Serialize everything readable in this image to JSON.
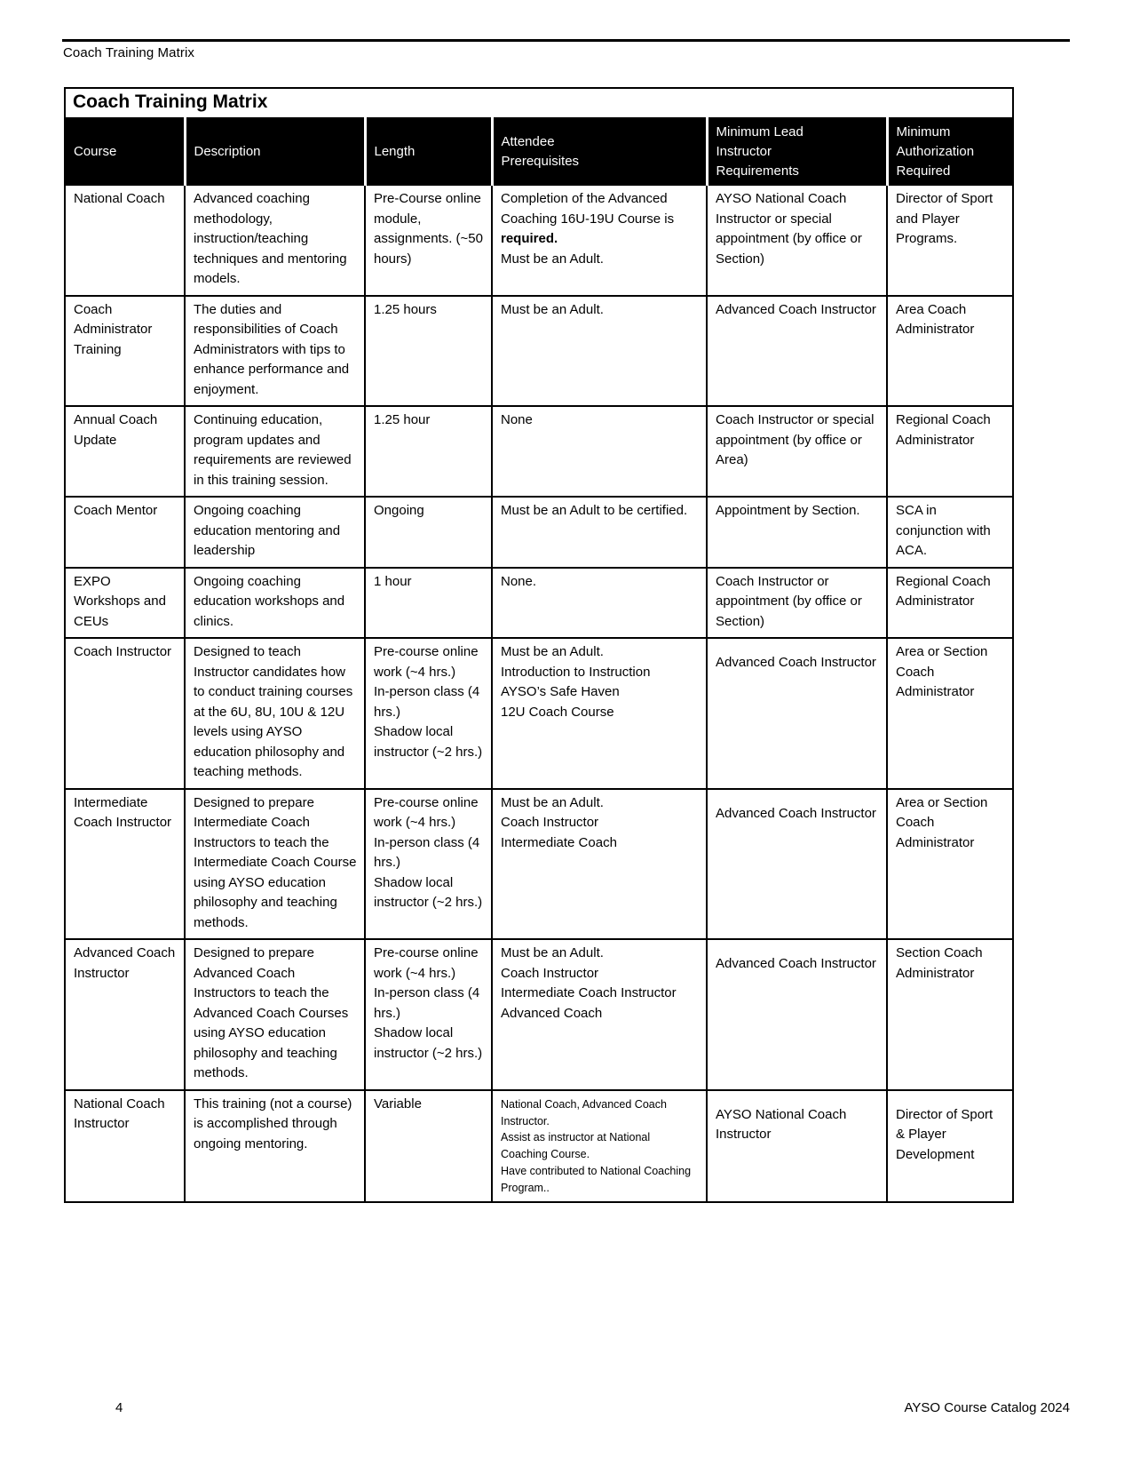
{
  "page": {
    "header_label": "Coach Training Matrix",
    "footer": {
      "page_number": "4",
      "catalog_label": "AYSO Course Catalog 2024"
    }
  },
  "colors": {
    "text": "#000000",
    "header_bg": "#000000",
    "header_text": "#ffffff",
    "page_bg": "#ffffff"
  },
  "table": {
    "title": "Coach Training Matrix",
    "columns": [
      "Course",
      "Description",
      "Length",
      "Attendee\nPrerequisites",
      "Minimum Lead\nInstructor\nRequirements",
      "Minimum\nAuthorization\nRequired"
    ],
    "rows": [
      {
        "course": "National Coach",
        "description": "Advanced coaching methodology, instruction/teaching techniques and mentoring models.",
        "length": "Pre-Course online module, assignments. (~50 hours)",
        "prereq": {
          "runs": [
            {
              "t": "Completion of the Advanced Coaching 16U-19U Course is "
            },
            {
              "t": "required.",
              "b": true
            },
            {
              "t": "\nMust be an Adult."
            }
          ]
        },
        "lead": "AYSO National Coach Instructor or special appointment (by office or Section)",
        "auth": "Director of Sport and Player Programs."
      },
      {
        "course": "Coach Administrator Training",
        "description": "The duties and responsibilities of Coach Administrators with tips to enhance performance and enjoyment.",
        "length": "1.25 hours",
        "prereq": "Must be an Adult.",
        "lead": "Advanced Coach Instructor",
        "auth": "Area Coach Administrator"
      },
      {
        "course": "Annual Coach Update",
        "description": "Continuing education, program updates and requirements are reviewed in this training session.",
        "length": "1.25 hour",
        "prereq": "None",
        "lead": "Coach Instructor or special appointment (by office or Area)",
        "auth": "Regional Coach Administrator"
      },
      {
        "course": "Coach Mentor",
        "description": "Ongoing coaching education mentoring and leadership",
        "length": "Ongoing",
        "prereq": "Must be an Adult to be certified.",
        "lead": "Appointment by Section.",
        "auth": "SCA in conjunction with ACA."
      },
      {
        "course": "EXPO Workshops and CEUs",
        "description": "Ongoing coaching education workshops and clinics.",
        "length": "1 hour",
        "prereq": "None.",
        "lead": "Coach Instructor or appointment (by office or Section)",
        "auth": "Regional Coach Administrator"
      },
      {
        "course": "Coach Instructor",
        "description": "Designed to teach Instructor candidates how to conduct training courses at the 6U, 8U, 10U & 12U levels using AYSO education philosophy and teaching methods.",
        "length": "Pre-course online work (~4 hrs.)\nIn-person class (4 hrs.)\nShadow local instructor (~2 hrs.)",
        "prereq": "Must be an Adult.\nIntroduction to Instruction\nAYSO’s Safe Haven\n12U Coach Course",
        "lead": "Advanced Coach Instructor",
        "auth": "Area or Section Coach Administrator"
      },
      {
        "course": "Intermediate Coach Instructor",
        "description": "Designed to prepare Intermediate Coach Instructors to teach the Intermediate Coach Course using AYSO education philosophy and teaching methods.",
        "length": "Pre-course online work (~4 hrs.)\nIn-person class (4 hrs.)\nShadow local instructor (~2 hrs.)",
        "prereq": "Must be an Adult.\nCoach Instructor\nIntermediate Coach",
        "lead": "Advanced Coach Instructor",
        "auth": "Area or Section Coach Administrator"
      },
      {
        "course": "Advanced Coach Instructor",
        "description": "Designed to prepare Advanced Coach Instructors to teach the Advanced Coach Courses using AYSO education philosophy and teaching methods.",
        "length": "Pre-course online work (~4 hrs.)\nIn-person class (4 hrs.)\nShadow local instructor (~2 hrs.)",
        "prereq": "Must be an Adult.\nCoach Instructor\nIntermediate Coach Instructor\nAdvanced Coach",
        "lead": "Advanced Coach Instructor",
        "auth": "Section Coach Administrator"
      },
      {
        "course": "National Coach Instructor",
        "description": "This training (not a course) is accomplished through ongoing mentoring.",
        "length": "Variable",
        "prereq": {
          "text": "National Coach, Advanced Coach Instructor.\nAssist as instructor at National Coaching Course.\nHave contributed to National Coaching Program..",
          "small": true
        },
        "lead": "AYSO National Coach Instructor",
        "auth": "Director of Sport & Player Development"
      }
    ]
  }
}
